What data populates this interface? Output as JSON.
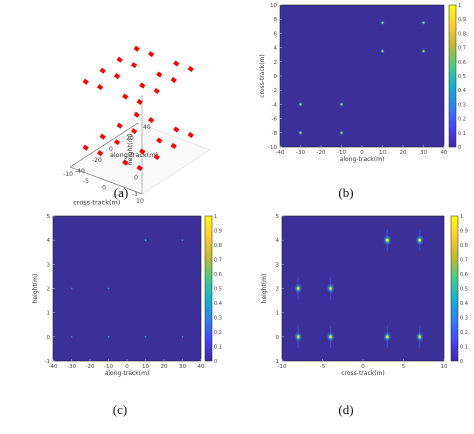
{
  "colors": {
    "background": "#3b2f9a",
    "peak": "#f7e328",
    "point": "#ff0000",
    "colormap": [
      "#3e26a8",
      "#4743f9",
      "#2f82f0",
      "#12b2cd",
      "#48cb86",
      "#bfbb2c",
      "#fcce2e",
      "#f9fb0e"
    ]
  },
  "chart_data": [
    {
      "id": "a",
      "type": "scatter",
      "projection": "3d",
      "caption": "(a)",
      "xlabel": "cross-track(m)",
      "ylabel": "along-track(m)",
      "zlabel": "height(m)",
      "x_ticks": [
        "10",
        "5",
        "0",
        "-5",
        "-10"
      ],
      "y_ticks": [
        "40",
        "20",
        "0",
        "-20",
        "-40"
      ],
      "z_ticks": [
        "1",
        "0",
        "-1"
      ],
      "visible_z_ticks": [
        "0",
        "-1"
      ],
      "points": [
        {
          "x": -8,
          "y": -30,
          "z": 4
        },
        {
          "x": -4,
          "y": -30,
          "z": 4
        },
        {
          "x": 3,
          "y": -30,
          "z": 4
        },
        {
          "x": 7,
          "y": -30,
          "z": 4
        },
        {
          "x": -8,
          "y": -10,
          "z": 4
        },
        {
          "x": -4,
          "y": -10,
          "z": 4
        },
        {
          "x": 3,
          "y": -10,
          "z": 4
        },
        {
          "x": 7,
          "y": -10,
          "z": 4
        },
        {
          "x": -8,
          "y": 10,
          "z": 4
        },
        {
          "x": -4,
          "y": 10,
          "z": 4
        },
        {
          "x": 3,
          "y": 10,
          "z": 4
        },
        {
          "x": 7,
          "y": 10,
          "z": 4
        },
        {
          "x": -8,
          "y": 30,
          "z": 4
        },
        {
          "x": -4,
          "y": 30,
          "z": 4
        },
        {
          "x": 3,
          "y": 30,
          "z": 4
        },
        {
          "x": 7,
          "y": 30,
          "z": 4
        },
        {
          "x": -8,
          "y": -30,
          "z": 0
        },
        {
          "x": -4,
          "y": -30,
          "z": 0
        },
        {
          "x": 3,
          "y": -30,
          "z": 0
        },
        {
          "x": 7,
          "y": -30,
          "z": 0
        },
        {
          "x": -8,
          "y": -10,
          "z": 0
        },
        {
          "x": -4,
          "y": -10,
          "z": 0
        },
        {
          "x": 3,
          "y": -10,
          "z": 0
        },
        {
          "x": 7,
          "y": -10,
          "z": 0
        },
        {
          "x": -8,
          "y": 10,
          "z": 0
        },
        {
          "x": -4,
          "y": 10,
          "z": 0
        },
        {
          "x": 3,
          "y": 10,
          "z": 0
        },
        {
          "x": 7,
          "y": 10,
          "z": 0
        },
        {
          "x": -8,
          "y": 30,
          "z": 0
        },
        {
          "x": -4,
          "y": 30,
          "z": 0
        },
        {
          "x": 3,
          "y": 30,
          "z": 0
        },
        {
          "x": 7,
          "y": 30,
          "z": 0
        }
      ]
    },
    {
      "id": "b",
      "type": "heatmap",
      "caption": "(b)",
      "xlabel": "along-track(m)",
      "ylabel": "cross-track(m)",
      "xlim": [
        -40,
        40
      ],
      "ylim": [
        -10,
        10
      ],
      "x_ticks": [
        "-40",
        "-30",
        "-20",
        "-10",
        "0",
        "10",
        "20",
        "30",
        "40"
      ],
      "y_ticks": [
        "10",
        "8",
        "6",
        "4",
        "2",
        "0",
        "-2",
        "-4",
        "-6",
        "-8",
        "-10"
      ],
      "colorbar_ticks": [
        "1",
        "0.9",
        "0.8",
        "0.7",
        "0.6",
        "0.5",
        "0.4",
        "0.3",
        "0.2",
        "0.1",
        "0"
      ],
      "peaks": [
        {
          "x": 10,
          "y": 7.5,
          "v": 0.8
        },
        {
          "x": 30,
          "y": 7.5,
          "v": 0.8
        },
        {
          "x": 10,
          "y": 3.5,
          "v": 0.8
        },
        {
          "x": 30,
          "y": 3.5,
          "v": 0.8
        },
        {
          "x": -30,
          "y": -4,
          "v": 0.8
        },
        {
          "x": -10,
          "y": -4,
          "v": 0.8
        },
        {
          "x": -30,
          "y": -8,
          "v": 0.8
        },
        {
          "x": -10,
          "y": -8,
          "v": 0.8
        }
      ]
    },
    {
      "id": "c",
      "type": "heatmap",
      "caption": "(c)",
      "xlabel": "along-track(m)",
      "ylabel": "height(m)",
      "xlim": [
        -40,
        40
      ],
      "ylim": [
        -1,
        5
      ],
      "x_ticks": [
        "-40",
        "-30",
        "-20",
        "-10",
        "0",
        "10",
        "20",
        "30",
        "40"
      ],
      "y_ticks": [
        "5",
        "4",
        "3",
        "2",
        "1",
        "0",
        "-1"
      ],
      "colorbar_ticks": [
        "1",
        "0.9",
        "0.8",
        "0.7",
        "0.6",
        "0.5",
        "0.4",
        "0.3",
        "0.2",
        "0.1",
        "0"
      ],
      "peaks": [
        {
          "x": 10,
          "y": 4,
          "v": 0.5
        },
        {
          "x": 30,
          "y": 4,
          "v": 0.35
        },
        {
          "x": -30,
          "y": 2,
          "v": 0.3
        },
        {
          "x": -10,
          "y": 2,
          "v": 0.35
        },
        {
          "x": -30,
          "y": 0,
          "v": 0.3
        },
        {
          "x": -10,
          "y": 0,
          "v": 0.35
        },
        {
          "x": 10,
          "y": 0,
          "v": 0.35
        },
        {
          "x": 30,
          "y": 0,
          "v": 0.3
        }
      ]
    },
    {
      "id": "d",
      "type": "heatmap",
      "caption": "(d)",
      "xlabel": "cross-track(m)",
      "ylabel": "height(m)",
      "xlim": [
        -10,
        10
      ],
      "ylim": [
        -1,
        5
      ],
      "x_ticks": [
        "-10",
        "-5",
        "0",
        "5",
        "10"
      ],
      "y_ticks": [
        "5",
        "4",
        "3",
        "2",
        "1",
        "0",
        "-1"
      ],
      "colorbar_ticks": [
        "1",
        "0.9",
        "0.8",
        "0.7",
        "0.6",
        "0.5",
        "0.4",
        "0.3",
        "0.2",
        "0.1",
        "0"
      ],
      "peaks": [
        {
          "x": -8,
          "y": 2,
          "v": 0.9
        },
        {
          "x": -4,
          "y": 2,
          "v": 0.9
        },
        {
          "x": 3,
          "y": 4,
          "v": 1.0
        },
        {
          "x": 7,
          "y": 4,
          "v": 0.95
        },
        {
          "x": -8,
          "y": 0,
          "v": 0.85
        },
        {
          "x": -4,
          "y": 0,
          "v": 0.9
        },
        {
          "x": 3,
          "y": 0,
          "v": 0.9
        },
        {
          "x": 7,
          "y": 0,
          "v": 0.85
        }
      ]
    }
  ]
}
